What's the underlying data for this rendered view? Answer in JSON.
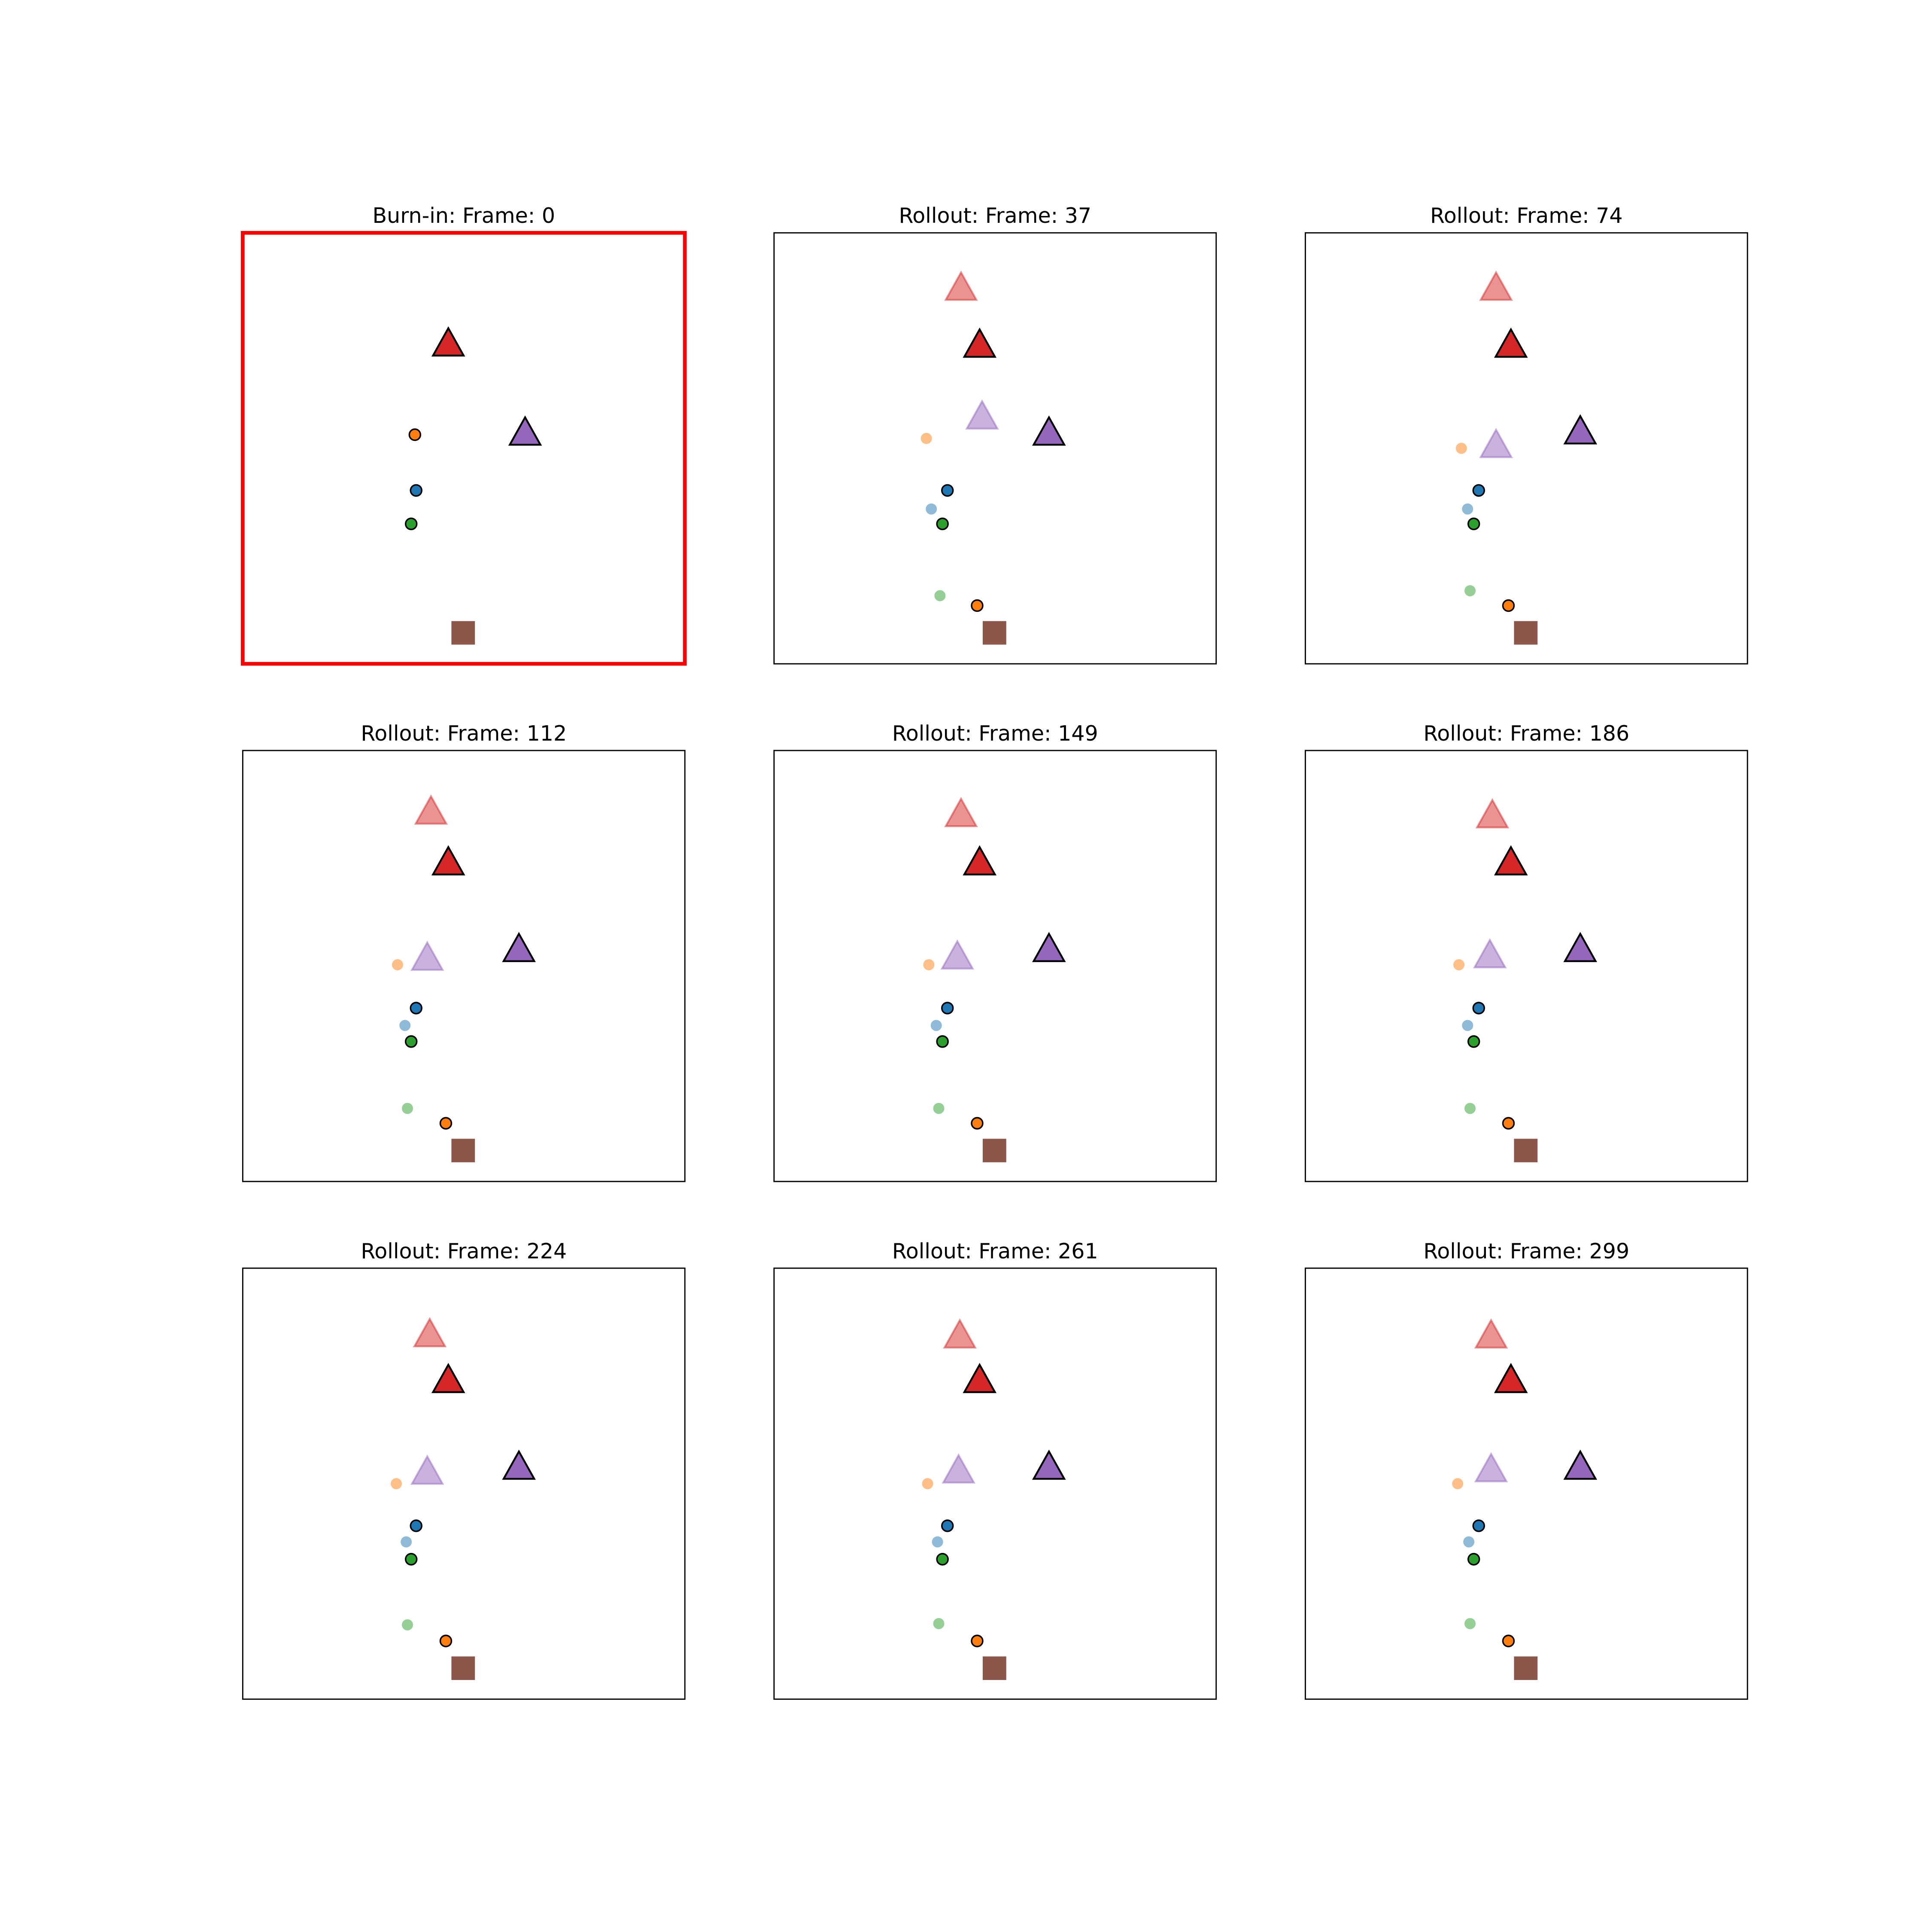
{
  "panels": [
    {
      "title": "Burn-in: Frame: 0"
    },
    {
      "title": "Rollout: Frame: 37"
    },
    {
      "title": "Rollout: Frame: 74"
    },
    {
      "title": "Rollout: Frame: 112"
    },
    {
      "title": "Rollout: Frame: 149"
    },
    {
      "title": "Rollout: Frame: 186"
    },
    {
      "title": "Rollout: Frame: 224"
    },
    {
      "title": "Rollout: Frame: 261"
    },
    {
      "title": "Rollout: Frame: 299"
    }
  ]
}
